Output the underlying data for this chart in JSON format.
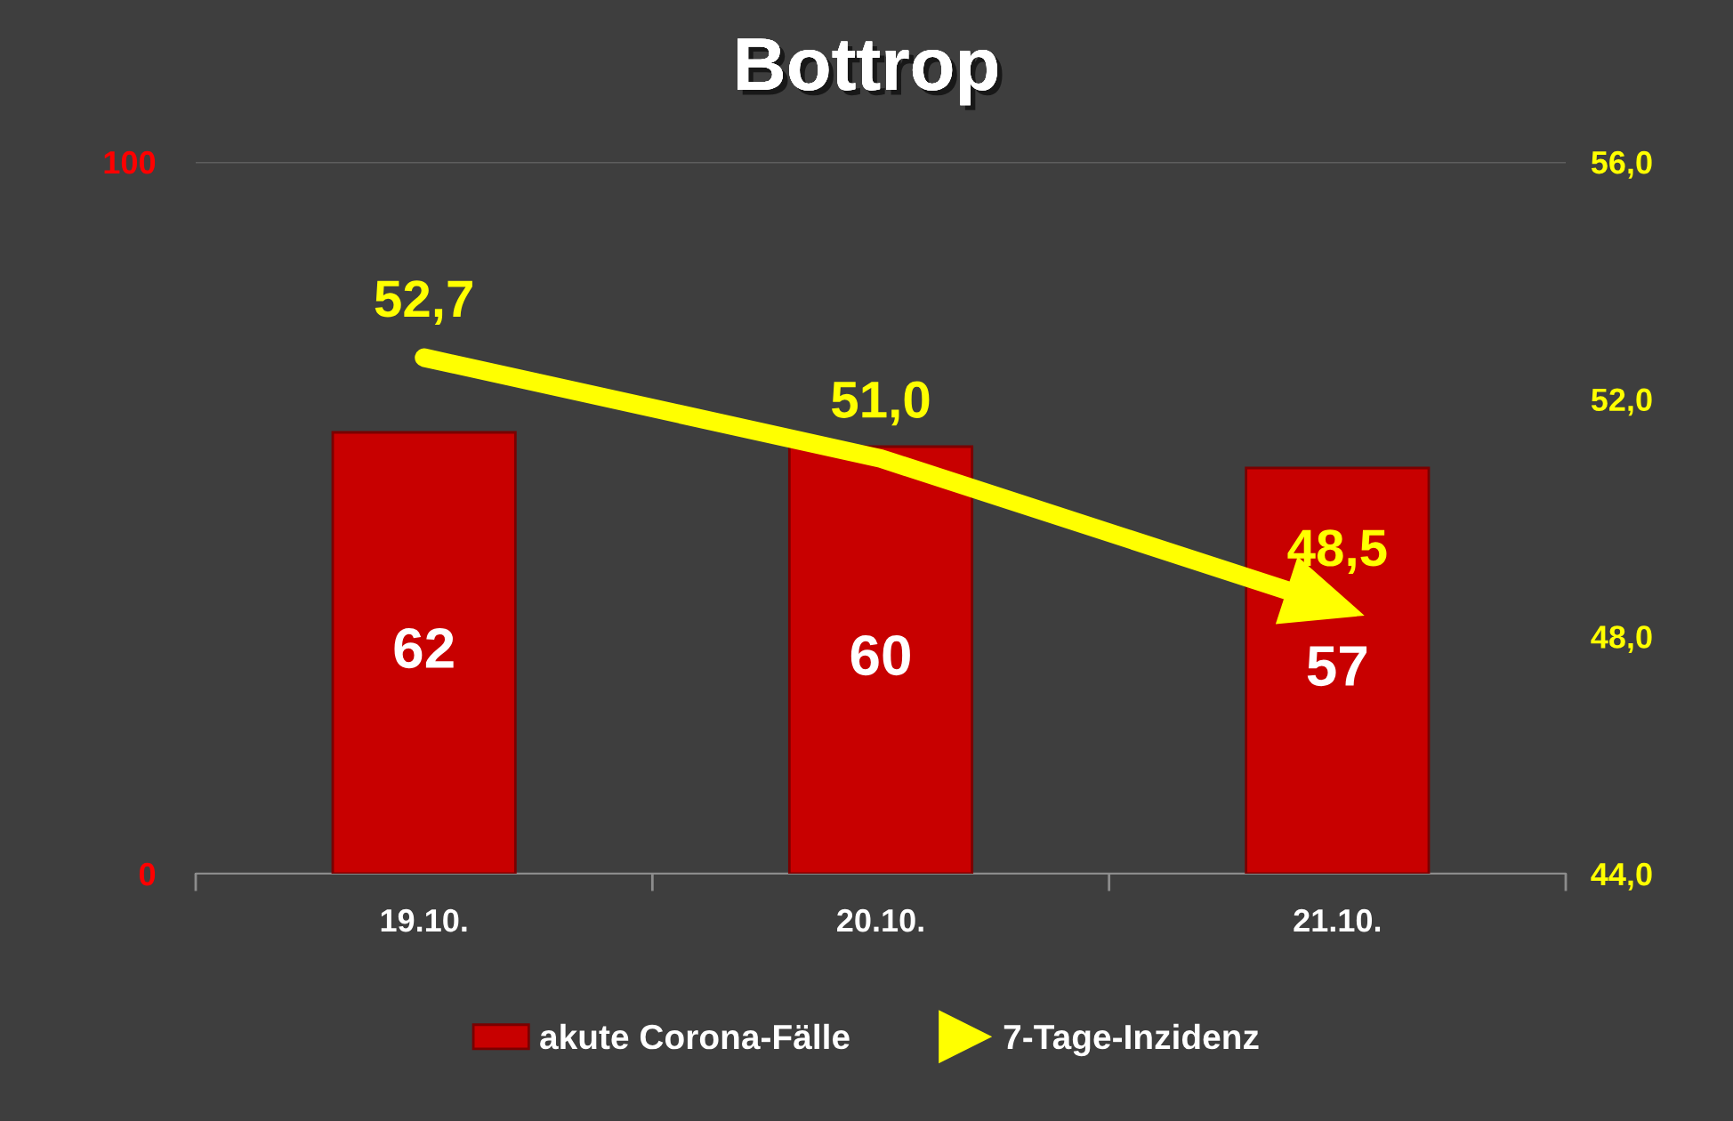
{
  "chart_data": {
    "type": "bar",
    "title": "Bottrop",
    "categories": [
      "19.10.",
      "20.10.",
      "21.10."
    ],
    "series": [
      {
        "name": "akute Corona-Fälle",
        "color": "#c80000",
        "values": [
          62,
          60,
          57
        ],
        "value_labels": [
          "62",
          "60",
          "57"
        ]
      },
      {
        "name": "7-Tage-Inzidenz",
        "type": "line",
        "axis": "y2",
        "color": "#ffff00",
        "values": [
          52.7,
          51.0,
          48.5
        ],
        "value_labels": [
          "52,7",
          "51,0",
          "48,5"
        ]
      }
    ],
    "ylim": [
      0,
      100
    ],
    "yticks": [
      0,
      100
    ],
    "y2lim": [
      44,
      56
    ],
    "y2ticks": [
      {
        "value": 44,
        "label": "44,0"
      },
      {
        "value": 48,
        "label": "48,0"
      },
      {
        "value": 52,
        "label": "52,0"
      },
      {
        "value": 56,
        "label": "56,0"
      }
    ],
    "grid": "y",
    "legend": "bottom"
  }
}
